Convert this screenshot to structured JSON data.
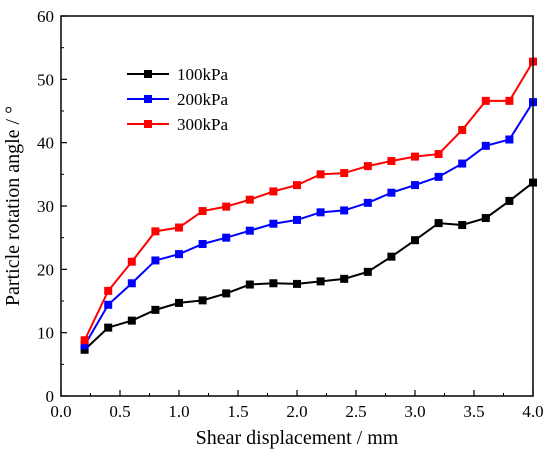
{
  "chart_data": {
    "type": "line",
    "title": "",
    "xlabel": "Shear displacement / mm",
    "ylabel": "Particle rotation angle / °",
    "xlim": [
      0.0,
      4.0
    ],
    "ylim": [
      0,
      60
    ],
    "xticks": [
      "0.0",
      "0.5",
      "1.0",
      "1.5",
      "2.0",
      "2.5",
      "3.0",
      "3.5",
      "4.0"
    ],
    "yticks": [
      "0",
      "10",
      "20",
      "30",
      "40",
      "50",
      "60"
    ],
    "grid": false,
    "legend_position": "top-left",
    "x": [
      0.2,
      0.4,
      0.6,
      0.8,
      1.0,
      1.2,
      1.4,
      1.6,
      1.8,
      2.0,
      2.2,
      2.4,
      2.6,
      2.8,
      3.0,
      3.2,
      3.4,
      3.6,
      3.8,
      4.0
    ],
    "series": [
      {
        "name": "100kPa",
        "color": "#000000",
        "values": [
          7.3,
          10.8,
          11.9,
          13.6,
          14.7,
          15.1,
          16.2,
          17.6,
          17.8,
          17.7,
          18.1,
          18.5,
          19.6,
          22.0,
          24.6,
          27.3,
          27.0,
          28.1,
          30.8,
          33.7
        ]
      },
      {
        "name": "200kPa",
        "color": "#0000ff",
        "values": [
          8.0,
          14.4,
          17.8,
          21.4,
          22.4,
          24.0,
          25.0,
          26.1,
          27.2,
          27.8,
          29.0,
          29.3,
          30.5,
          32.1,
          33.3,
          34.6,
          36.7,
          39.5,
          40.5,
          46.4
        ]
      },
      {
        "name": "300kPa",
        "color": "#ff0000",
        "values": [
          8.8,
          16.6,
          21.2,
          26.0,
          26.6,
          29.2,
          29.9,
          31.0,
          32.3,
          33.3,
          35.0,
          35.2,
          36.3,
          37.1,
          37.8,
          38.2,
          42.0,
          46.6,
          46.6,
          52.8
        ]
      }
    ]
  }
}
